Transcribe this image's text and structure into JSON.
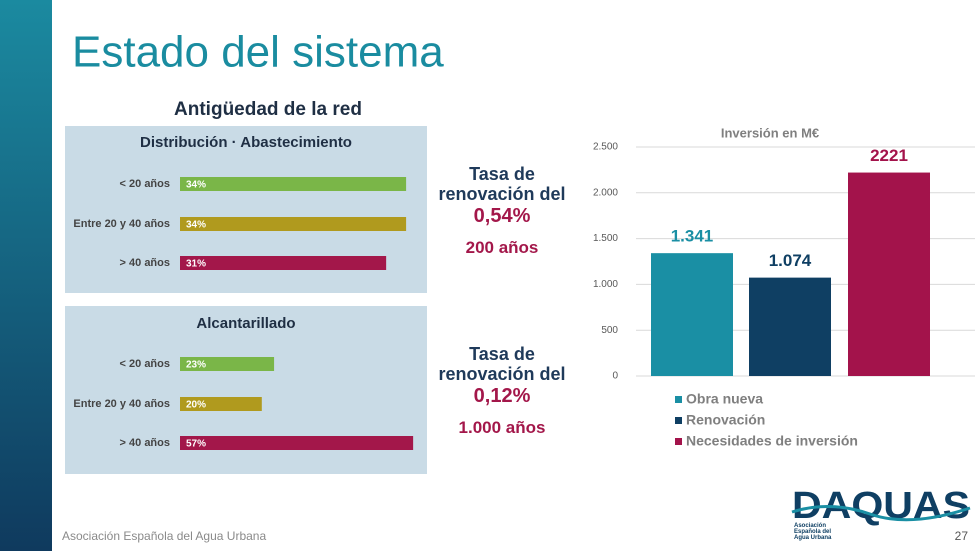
{
  "title": "Estado del sistema",
  "section_title": "Antigüedad de la red",
  "chart_data": [
    {
      "type": "bar",
      "orientation": "horizontal",
      "title": "Distribución · Abastecimiento",
      "categories": [
        "< 20 años",
        "Entre 20 y 40 años",
        "> 40 años"
      ],
      "values": [
        34,
        34,
        31
      ],
      "value_labels": [
        "34%",
        "34%",
        "31%"
      ],
      "colors": [
        "#7ab648",
        "#b09a1e",
        "#a3174a"
      ]
    },
    {
      "type": "bar",
      "orientation": "horizontal",
      "title": "Alcantarillado",
      "categories": [
        "< 20 años",
        "Entre 20 y 40 años",
        "> 40 años"
      ],
      "values": [
        23,
        20,
        57
      ],
      "value_labels": [
        "23%",
        "20%",
        "57%"
      ],
      "colors": [
        "#7ab648",
        "#b09a1e",
        "#a3174a"
      ]
    },
    {
      "type": "bar",
      "orientation": "vertical",
      "title": "Inversión en M€",
      "categories": [
        null
      ],
      "series": [
        {
          "name": "Obra nueva",
          "color": "#1a8fa4",
          "values": [
            1341
          ],
          "value_labels": [
            "1.341"
          ]
        },
        {
          "name": "Renovación",
          "color": "#0f3f63",
          "values": [
            1074
          ],
          "value_labels": [
            "1.074"
          ]
        },
        {
          "name": "Necesidades de inversión",
          "color": "#a3134b",
          "values": [
            2221
          ]
        }
      ],
      "ylim": [
        0,
        2500
      ],
      "yticks": [
        0,
        500,
        {
          "value": 1000,
          "label": "1.000"
        },
        {
          "value": 1500,
          "label": "1.500"
        },
        {
          "value": 2000,
          "label": "2.000"
        },
        {
          "value": 2500,
          "label": "2.500"
        }
      ],
      "grid": true,
      "legend": "bottom"
    }
  ],
  "notes": [
    {
      "heading": "Tasa de renovación del",
      "rate": "0,54%",
      "years": "200 años"
    },
    {
      "heading": "Tasa de renovación del",
      "rate": "0,12%",
      "years": "1.000 años"
    }
  ],
  "footer": "Asociación Española del Agua Urbana",
  "page_number": "27",
  "logo": {
    "name": "DAQUAS",
    "tagline": "Asociación Española del Agua Urbana"
  }
}
